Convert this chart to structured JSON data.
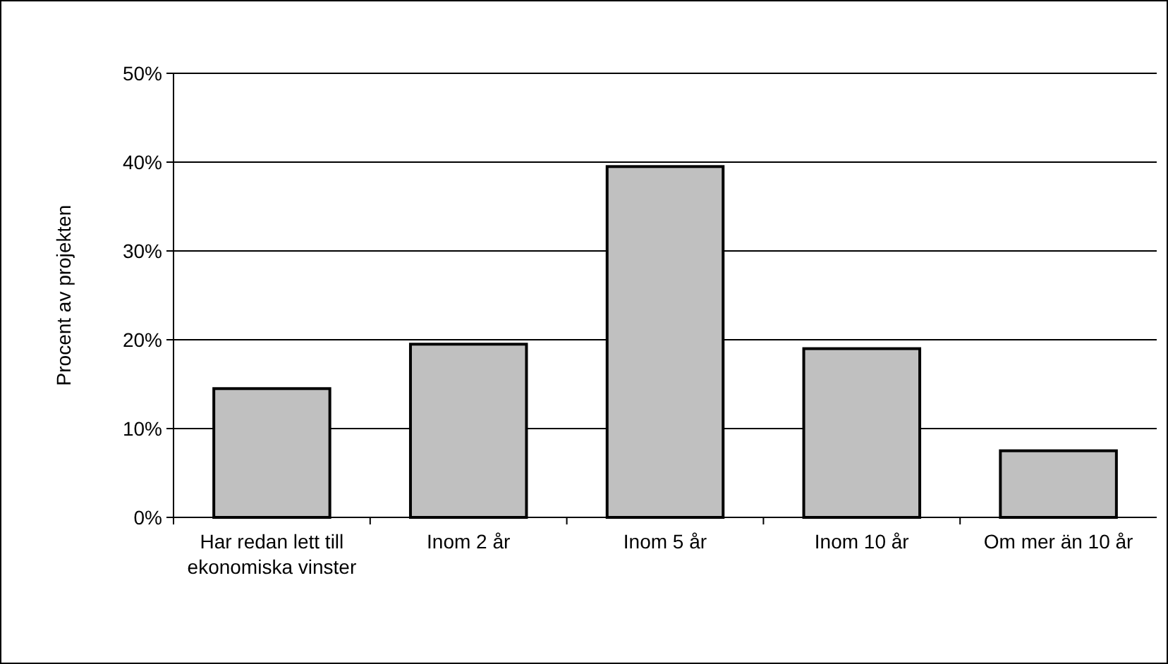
{
  "chart_data": {
    "type": "bar",
    "ylabel": "Procent av projekten",
    "categories": [
      "Har redan lett till ekonomiska vinster",
      "Inom 2 år",
      "Inom 5 år",
      "Inom 10 år",
      "Om mer än 10 år"
    ],
    "values": [
      14.5,
      19.5,
      39.5,
      19,
      7.5
    ],
    "color": "#c0c0c0",
    "ylim": [
      0,
      50
    ],
    "yticks": [
      {
        "value": 0,
        "label": "0%"
      },
      {
        "value": 10,
        "label": "10%"
      },
      {
        "value": 20,
        "label": "20%"
      },
      {
        "value": 30,
        "label": "30%"
      },
      {
        "value": 40,
        "label": "40%"
      },
      {
        "value": 50,
        "label": "50%"
      }
    ],
    "grid": "y"
  }
}
